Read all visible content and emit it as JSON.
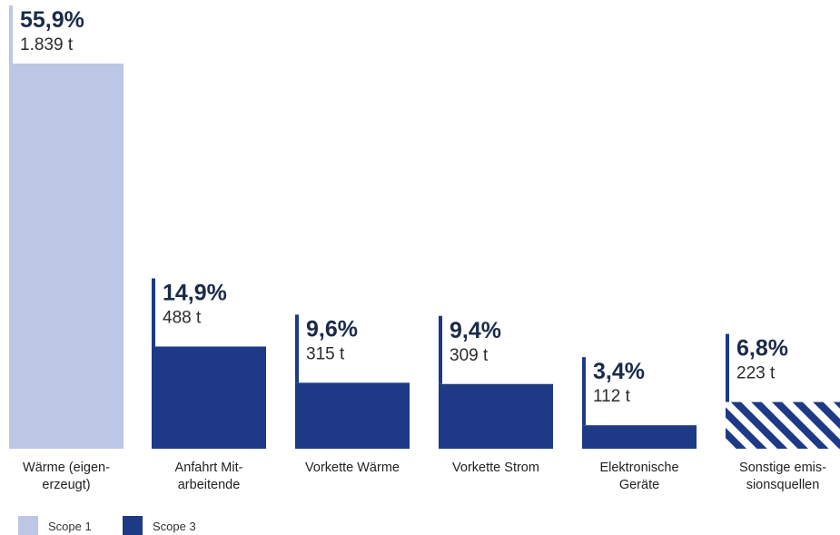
{
  "colors": {
    "scope1": "#bdc6e4",
    "scope3": "#1e3a86",
    "text": "#1b2a4a"
  },
  "legend": [
    {
      "label": "Scope 1",
      "color_key": "scope1"
    },
    {
      "label": "Scope 3",
      "color_key": "scope3"
    }
  ],
  "chart_data": {
    "type": "bar",
    "title": "",
    "xlabel": "",
    "ylabel": "",
    "legend_position": "bottom-left",
    "grid": false,
    "ylim": [
      0,
      1839
    ],
    "unit": "t",
    "categories": [
      [
        "Wärme (eigen-",
        "erzeugt)"
      ],
      [
        "Anfahrt Mit-",
        "arbeitende"
      ],
      [
        "Vorkette Wärme"
      ],
      [
        "Vorkette Strom"
      ],
      [
        "Elektronische",
        "Geräte"
      ],
      [
        "Sonstige emis-",
        "sionsquellen"
      ]
    ],
    "values": [
      1839,
      488,
      315,
      309,
      112,
      223
    ],
    "value_labels": [
      "1.839 t",
      "488 t",
      "315 t",
      "309 t",
      "112 t",
      "223 t"
    ],
    "percent_labels": [
      "55,9%",
      "14,9%",
      "9,6%",
      "9,4%",
      "3,4%",
      "6,8%"
    ],
    "scope": [
      "Scope 1",
      "Scope 3",
      "Scope 3",
      "Scope 3",
      "Scope 3",
      "Scope 3"
    ],
    "hatched": [
      false,
      false,
      false,
      false,
      false,
      true
    ]
  }
}
